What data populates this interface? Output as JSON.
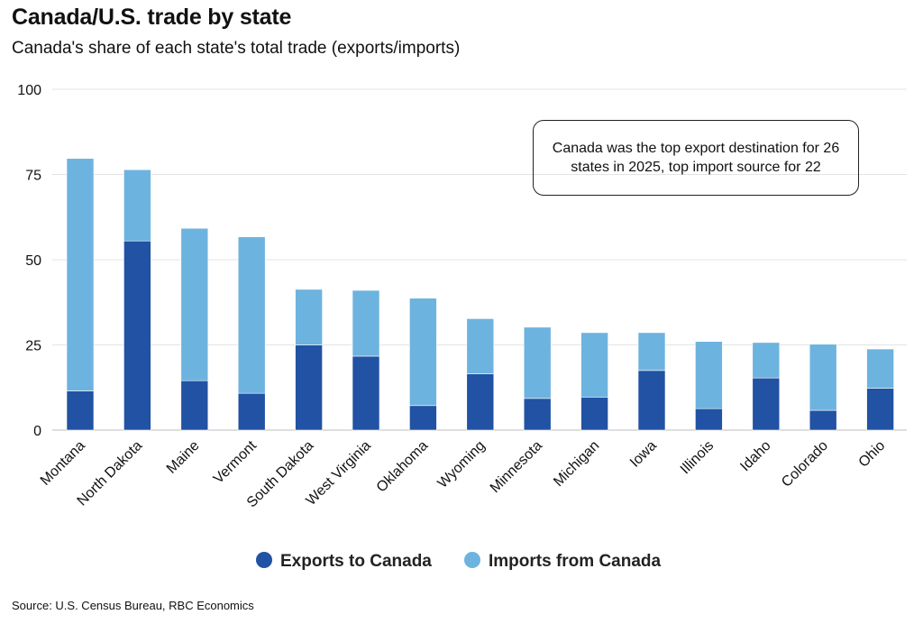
{
  "header": {
    "title": "Canada/U.S. trade by state",
    "subtitle": "Canada's share of each state's total trade (exports/imports)"
  },
  "annotation": "Canada was the top export destination for 26 states in 2025, top import source for 22",
  "source": "Source: U.S. Census Bureau, RBC Economics",
  "colors": {
    "exports": "#2152a3",
    "imports": "#6db3df",
    "grid": "#e3e3e3"
  },
  "chart_data": {
    "type": "bar",
    "stacked": true,
    "title": "Canada/U.S. trade by state",
    "subtitle": "Canada's share of each state's total trade (exports/imports)",
    "categories": [
      "Montana",
      "North Dakota",
      "Maine",
      "Vermont",
      "South Dakota",
      "West Virginia",
      "Oklahoma",
      "Wyoming",
      "Minnesota",
      "Michigan",
      "Iowa",
      "Illinois",
      "Idaho",
      "Colorado",
      "Ohio"
    ],
    "series": [
      {
        "name": "Exports to Canada",
        "values": [
          11.5,
          55.5,
          14.5,
          10.8,
          25,
          21.7,
          7.2,
          16.5,
          9.3,
          9.7,
          17.5,
          6.3,
          15.3,
          5.8,
          12.3
        ]
      },
      {
        "name": "Imports from Canada",
        "values": [
          68.2,
          20.9,
          44.7,
          45.9,
          16.3,
          19.3,
          31.5,
          16.2,
          20.9,
          18.9,
          11.1,
          19.7,
          10.4,
          19.4,
          11.5
        ]
      }
    ],
    "yticks": [
      0,
      25,
      50,
      75,
      100
    ],
    "ylim": [
      0,
      100
    ],
    "grid": true,
    "legend_position": "bottom"
  }
}
